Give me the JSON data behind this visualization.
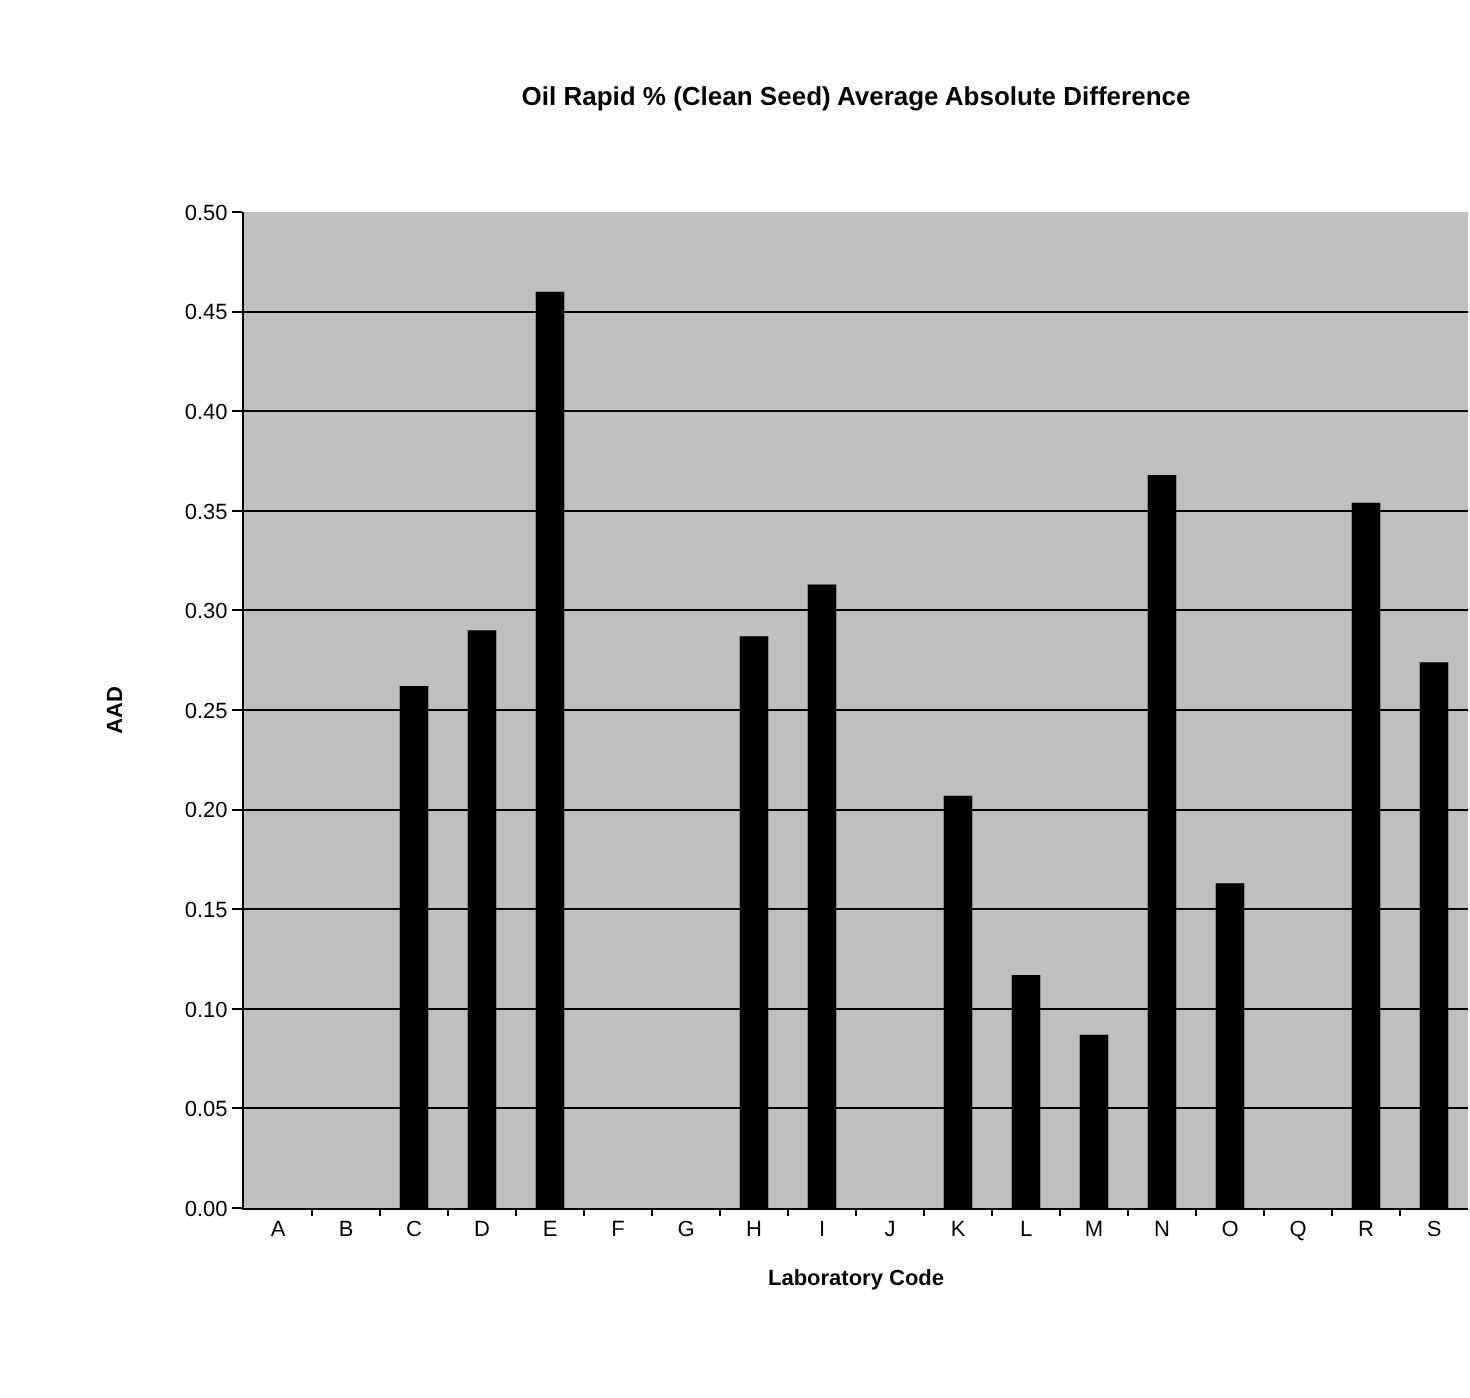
{
  "chart_data": {
    "type": "bar",
    "title": "Oil Rapid % (Clean Seed) Average Absolute Difference",
    "xlabel": "Laboratory Code",
    "ylabel": "AAD",
    "categories": [
      "A",
      "B",
      "C",
      "D",
      "E",
      "F",
      "G",
      "H",
      "I",
      "J",
      "K",
      "L",
      "M",
      "N",
      "O",
      "Q",
      "R",
      "S"
    ],
    "values": [
      null,
      null,
      0.262,
      0.29,
      0.46,
      null,
      null,
      0.287,
      0.313,
      null,
      0.207,
      0.117,
      0.087,
      0.368,
      0.163,
      null,
      0.354,
      0.274
    ],
    "color": "#000000",
    "ylim": [
      0,
      0.5
    ],
    "yticks": [
      {
        "value": 0,
        "label": "0.00"
      },
      {
        "value": 0.05,
        "label": "0.05"
      },
      {
        "value": 0.1,
        "label": "0.10"
      },
      {
        "value": 0.15,
        "label": "0.15"
      },
      {
        "value": 0.2,
        "label": "0.20"
      },
      {
        "value": 0.25,
        "label": "0.25"
      },
      {
        "value": 0.3,
        "label": "0.30"
      },
      {
        "value": 0.35,
        "label": "0.35"
      },
      {
        "value": 0.4,
        "label": "0.40"
      },
      {
        "value": 0.45,
        "label": "0.45"
      },
      {
        "value": 0.5,
        "label": "0.50"
      }
    ],
    "grid": "y",
    "legend": false
  }
}
